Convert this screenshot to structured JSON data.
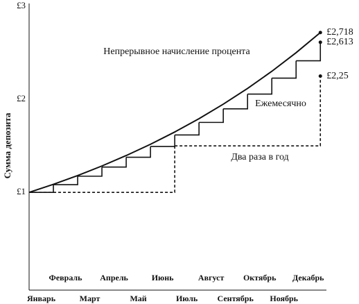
{
  "chart_data": {
    "type": "step",
    "y_label": "Сумма депозита",
    "x": [
      0,
      1,
      2,
      3,
      4,
      5,
      6,
      7,
      8,
      9,
      10,
      11,
      12
    ],
    "xlim": [
      0,
      12.25
    ],
    "xticks": [
      {
        "value": 0.5,
        "label": "Январь"
      },
      {
        "value": 1.5,
        "label": "Февраль"
      },
      {
        "value": 2.5,
        "label": "Март"
      },
      {
        "value": 3.5,
        "label": "Апрель"
      },
      {
        "value": 4.5,
        "label": "Май"
      },
      {
        "value": 5.5,
        "label": "Июнь"
      },
      {
        "value": 6.5,
        "label": "Июль"
      },
      {
        "value": 7.5,
        "label": "Август"
      },
      {
        "value": 8.5,
        "label": "Сентябрь"
      },
      {
        "value": 9.5,
        "label": "Октябрь"
      },
      {
        "value": 10.5,
        "label": "Ноябрь"
      },
      {
        "value": 11.5,
        "label": "Декабрь"
      }
    ],
    "ylim": [
      -0.05,
      3.03
    ],
    "yticks": [
      {
        "value": 1,
        "label": "£1"
      },
      {
        "value": 2,
        "label": "£2"
      },
      {
        "value": 3,
        "label": "£3"
      }
    ],
    "series": [
      {
        "name": "Непрерывное начисление процента",
        "style": "curve",
        "color": "#111111",
        "values": [
          1,
          1.087,
          1.181,
          1.284,
          1.396,
          1.517,
          1.649,
          1.792,
          1.948,
          2.117,
          2.301,
          2.501,
          2.718
        ],
        "value_labels": [
          null,
          null,
          null,
          null,
          null,
          null,
          null,
          null,
          null,
          null,
          null,
          null,
          "£2,718"
        ]
      },
      {
        "name": "Ежемесячно",
        "style": "step",
        "color": "#111111",
        "values": [
          1,
          1.083,
          1.174,
          1.272,
          1.378,
          1.493,
          1.617,
          1.752,
          1.898,
          2.056,
          2.228,
          2.414,
          2.613
        ],
        "value_labels": [
          null,
          null,
          null,
          null,
          null,
          null,
          null,
          null,
          null,
          null,
          null,
          null,
          "£2,613"
        ]
      },
      {
        "name": "Два раза в год",
        "style": "dashed-step",
        "color": "#111111",
        "values": [
          1,
          1,
          1,
          1,
          1,
          1,
          1.5,
          1.5,
          1.5,
          1.5,
          1.5,
          1.5,
          2.25
        ],
        "value_labels": [
          null,
          null,
          null,
          null,
          null,
          null,
          null,
          null,
          null,
          null,
          null,
          null,
          "£2,25"
        ]
      }
    ]
  }
}
